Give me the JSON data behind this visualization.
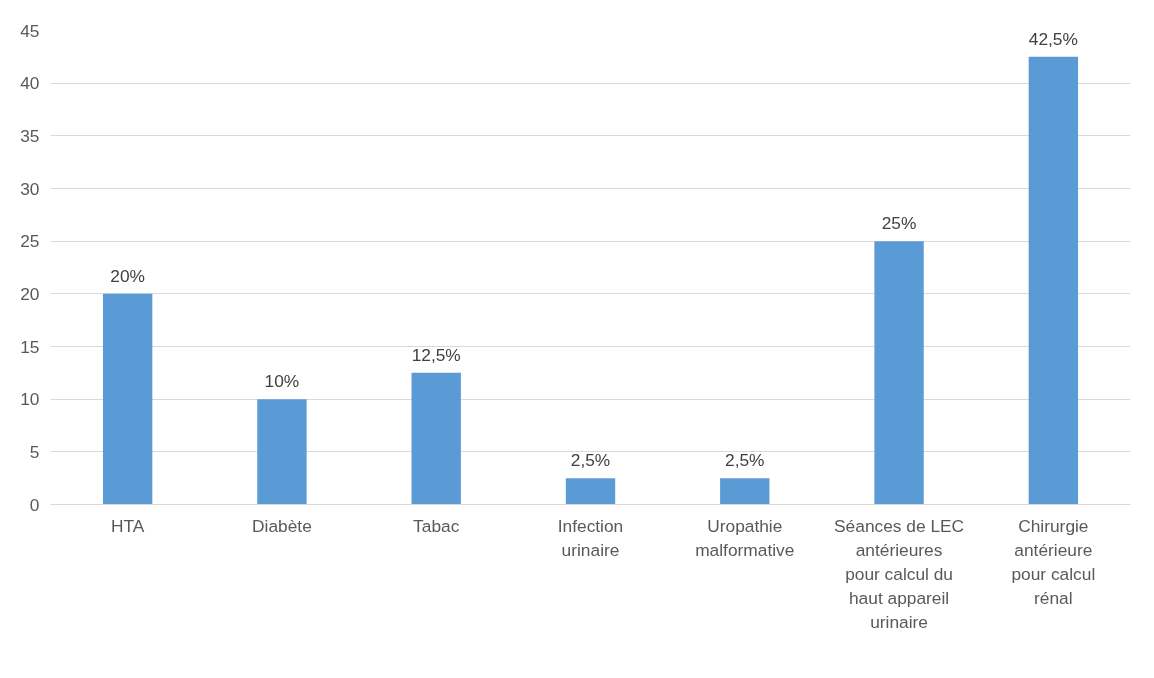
{
  "chart_data": {
    "type": "bar",
    "categories": [
      "HTA",
      "Diabète",
      "Tabac",
      "Infection urinaire",
      "Uropathie malformative",
      "Séances de LEC antérieures pour calcul du haut appareil urinaire",
      "Chirurgie antérieure pour calcul rénal"
    ],
    "values": [
      20,
      10,
      12.5,
      2.5,
      2.5,
      25,
      42.5
    ],
    "value_labels": [
      "20%",
      "10%",
      "12,5%",
      "2,5%",
      "2,5%",
      "25%",
      "42,5%"
    ],
    "color": "#5b9bd5",
    "ylim": [
      0,
      45
    ],
    "yticks": [
      0,
      5,
      10,
      15,
      20,
      25,
      30,
      35,
      40,
      45
    ],
    "grid": "y"
  }
}
